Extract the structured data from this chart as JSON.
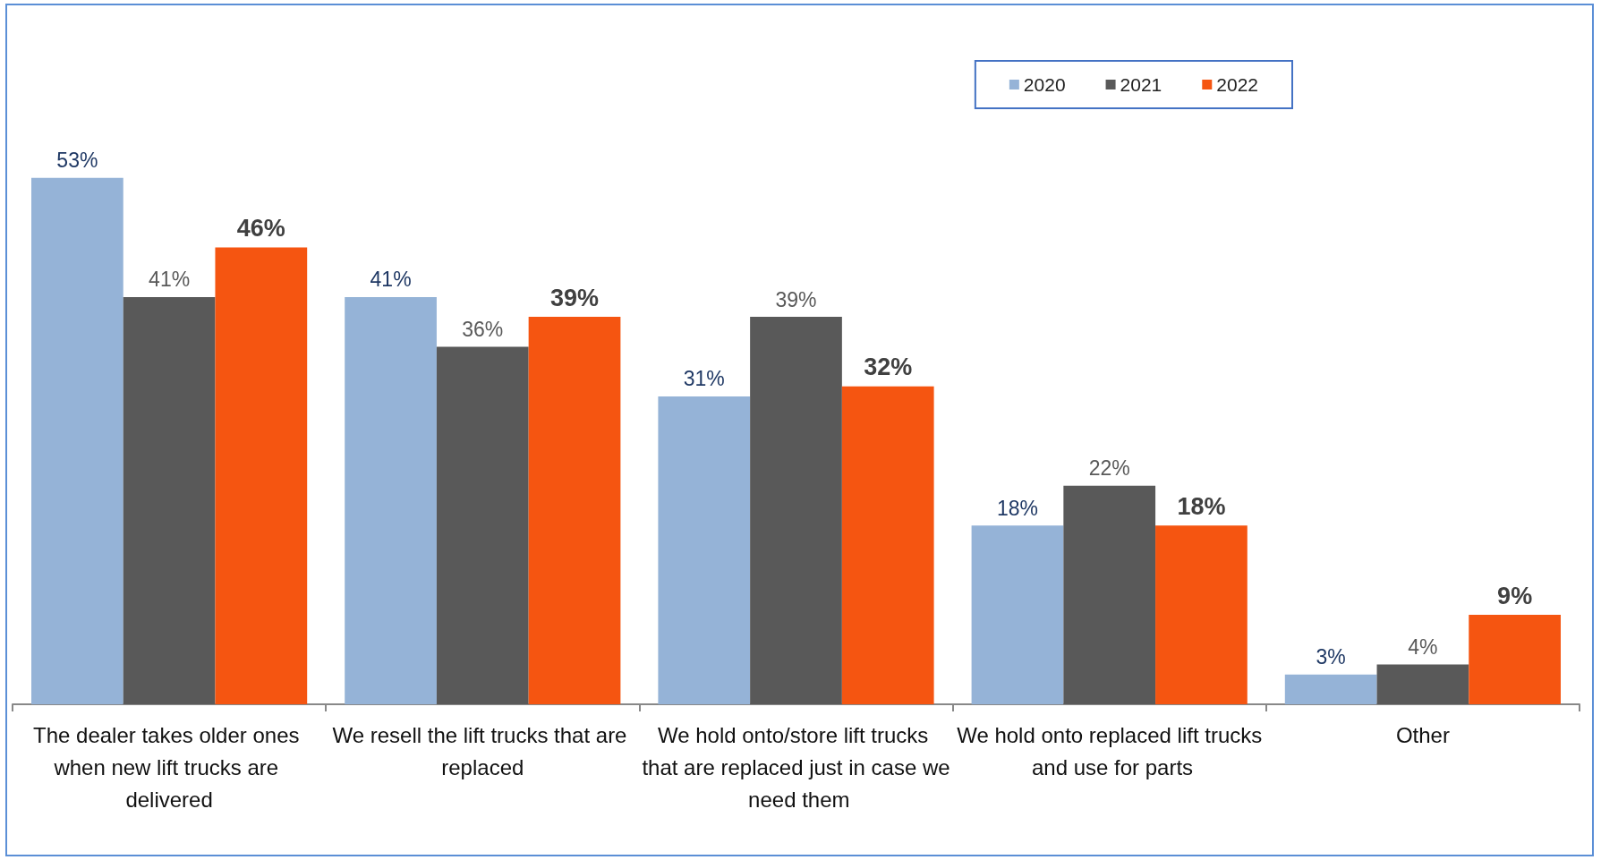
{
  "chart_data": {
    "type": "bar",
    "categories": [
      "The dealer takes older ones when new lift trucks are delivered",
      "We resell the lift trucks that are replaced",
      "We hold onto/store lift trucks that are replaced just in case we need them",
      "We hold onto replaced lift trucks and use for parts",
      "Other"
    ],
    "series": [
      {
        "name": "2020",
        "color": "#95b3d7",
        "values": [
          53,
          41,
          31,
          18,
          3
        ],
        "value_labels": [
          "53%",
          "41%",
          "31%",
          "18%",
          "3%"
        ]
      },
      {
        "name": "2021",
        "color": "#595959",
        "values": [
          41,
          36,
          39,
          22,
          4
        ],
        "value_labels": [
          "41%",
          "36%",
          "39%",
          "22%",
          "4%"
        ]
      },
      {
        "name": "2022",
        "color": "#f55511",
        "values": [
          46,
          39,
          32,
          18,
          9
        ],
        "value_labels": [
          "46%",
          "39%",
          "32%",
          "18%",
          "9%"
        ]
      }
    ],
    "legend": "top right",
    "grid": false
  }
}
